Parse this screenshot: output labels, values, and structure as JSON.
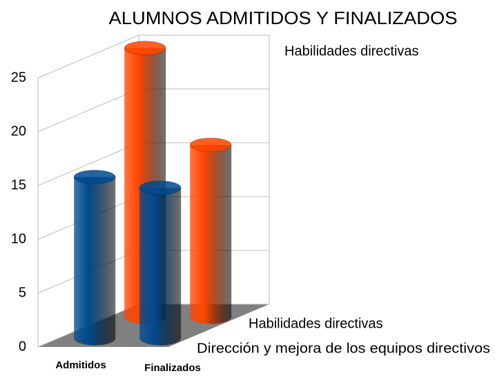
{
  "chart_data": {
    "type": "bar3d",
    "title": "ALUMNOS ADMITIDOS Y FINALIZADOS",
    "categories": [
      "Admitidos",
      "Finalizados"
    ],
    "series": [
      {
        "name": "Dirección y mejora de los equipos directivos",
        "color": "#004a8f",
        "values": [
          15,
          14
        ]
      },
      {
        "name": "Habilidades directivas",
        "color": "#ff4500",
        "values": [
          25,
          16
        ]
      }
    ],
    "ylim": [
      0,
      25
    ],
    "yticks": [
      0,
      5,
      10,
      15,
      20,
      25
    ],
    "grid": true
  }
}
